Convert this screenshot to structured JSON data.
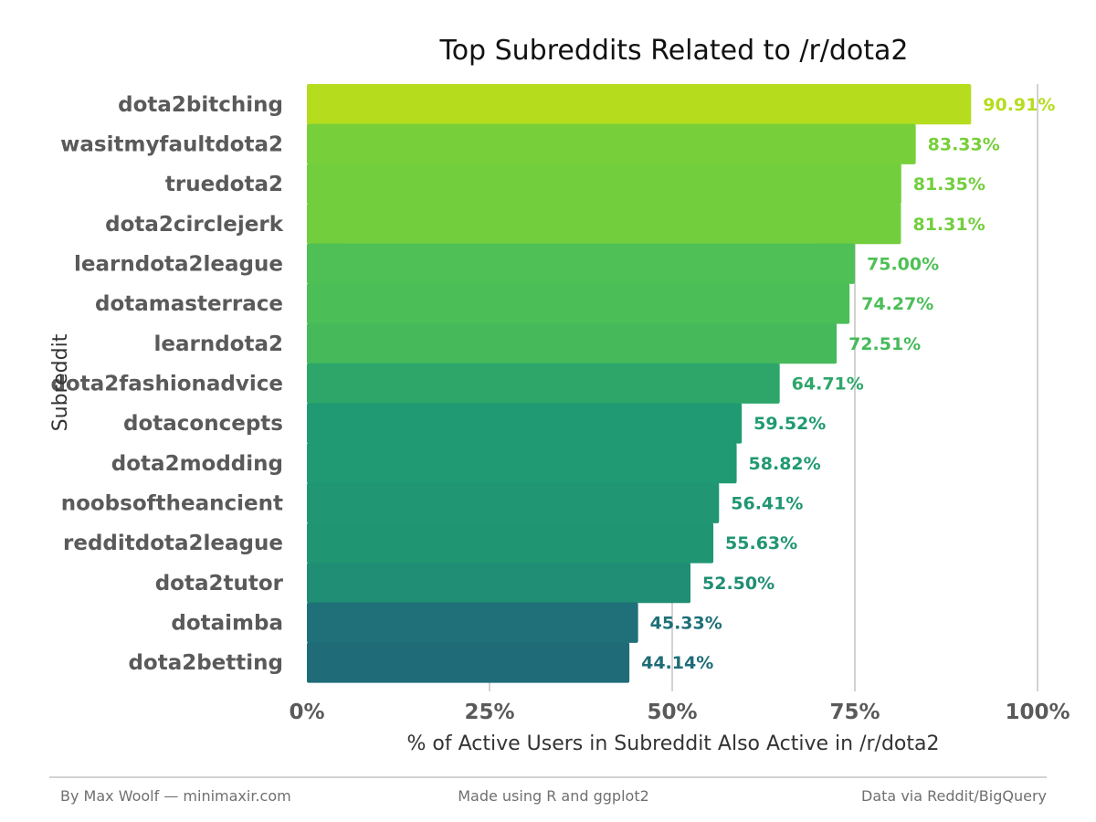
{
  "chart_data": {
    "type": "bar",
    "orientation": "horizontal",
    "title": "Top Subreddits Related to /r/dota2",
    "xlabel": "% of Active Users in Subreddit Also Active in /r/dota2",
    "ylabel": "Subreddit",
    "categories": [
      "dota2bitching",
      "wasitmyfaultdota2",
      "truedota2",
      "dota2circlejerk",
      "learndota2league",
      "dotamasterrace",
      "learndota2",
      "dota2fashionadvice",
      "dotaconcepts",
      "dota2modding",
      "noobsoftheancient",
      "redditdota2league",
      "dota2tutor",
      "dotaimba",
      "dota2betting"
    ],
    "values": [
      90.91,
      83.33,
      81.35,
      81.31,
      75.0,
      74.27,
      72.51,
      64.71,
      59.52,
      58.82,
      56.41,
      55.63,
      52.5,
      45.33,
      44.14
    ],
    "value_labels": [
      "90.91%",
      "83.33%",
      "81.35%",
      "81.31%",
      "75.00%",
      "74.27%",
      "72.51%",
      "64.71%",
      "59.52%",
      "58.82%",
      "56.41%",
      "55.63%",
      "52.50%",
      "45.33%",
      "44.14%"
    ],
    "colors": [
      "#b5dd1e",
      "#77cf3a",
      "#72ce3d",
      "#72ce3d",
      "#4ec055",
      "#4bbe57",
      "#46ba5a",
      "#2ea66a",
      "#209a72",
      "#209a72",
      "#209672",
      "#209572",
      "#208e74",
      "#1f7078",
      "#1f6c78"
    ],
    "xlim": [
      0,
      100
    ],
    "x_ticks": [
      0,
      25,
      50,
      75,
      100
    ],
    "x_tick_labels": [
      "0%",
      "25%",
      "50%",
      "75%",
      "100%"
    ],
    "grid": "vertical-major"
  },
  "footer": {
    "left": "By Max Woolf — minimaxir.com",
    "center": "Made using R and ggplot2",
    "right": "Data via Reddit/BigQuery"
  }
}
